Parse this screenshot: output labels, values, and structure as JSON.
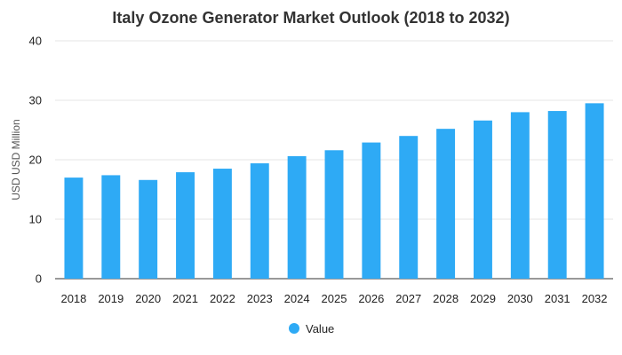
{
  "chart_data": {
    "type": "bar",
    "title": "Italy Ozone Generator Market Outlook (2018 to 2032)",
    "xlabel": "",
    "ylabel": "USD USD Million",
    "ylim": [
      0,
      40
    ],
    "yticks": [
      "0",
      "10",
      "20",
      "30",
      "40"
    ],
    "categories": [
      "2018",
      "2019",
      "2020",
      "2021",
      "2022",
      "2023",
      "2024",
      "2025",
      "2026",
      "2027",
      "2028",
      "2029",
      "2030",
      "2031",
      "2032"
    ],
    "series": [
      {
        "name": "Value",
        "color": "#2eaaf5",
        "values": [
          17.0,
          17.4,
          16.6,
          17.9,
          18.5,
          19.4,
          20.6,
          21.6,
          22.9,
          24.0,
          25.2,
          26.6,
          28.0,
          28.2,
          29.5
        ]
      }
    ],
    "grid": true,
    "legend_position": "bottom-center"
  }
}
